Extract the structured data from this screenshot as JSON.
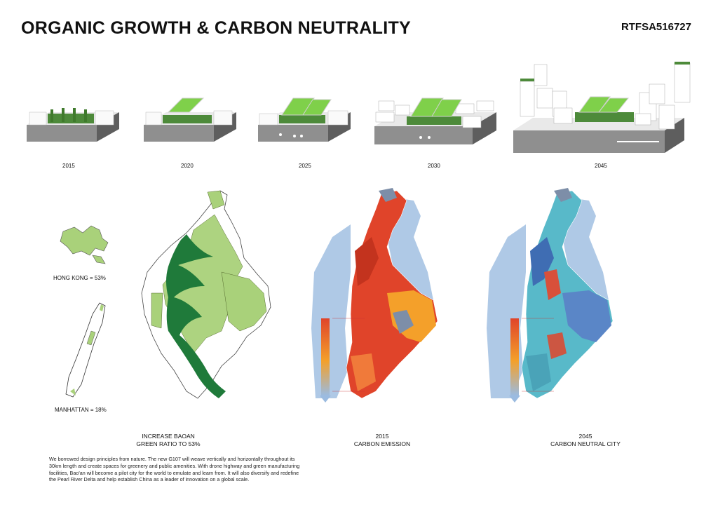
{
  "header": {
    "title": "ORGANIC GROWTH & CARBON NEUTRALITY",
    "code": "RTFSA516727"
  },
  "timeline": {
    "stages": [
      {
        "year": "2015"
      },
      {
        "year": "2020"
      },
      {
        "year": "2025"
      },
      {
        "year": "2030"
      },
      {
        "year": "2045"
      }
    ]
  },
  "comparison": {
    "hong_kong": "HONG KONG = 53%",
    "manhattan": "MANHATTAN = 18%"
  },
  "captions": {
    "green": "INCREASE BAOAN\nGREEN RATIO TO 53%",
    "emission_2015": "2015\nCARBON EMISSION",
    "neutral_2045": "2045\nCARBON NEUTRAL CITY"
  },
  "description": "We borrowed design principles from nature. The new G107 will weave vertically and horizontally throughout its 30km length and create spaces for greenery and public amenities. With drone highway and green manufacturing facilities, Bao'an will become a pilot city for the world to emulate and learn from. It will also diversify and redefine the Pearl River Delta and help establish China as a leader of innovation on a global scale.",
  "colors": {
    "forest_green": "#1f7a3a",
    "light_green": "#a9d17a",
    "emission_red": "#e0442a",
    "emission_orange": "#f4a02a",
    "water_blue": "#9bbbe0",
    "neutral_blue": "#5a86c7",
    "neutral_teal": "#58b9c9"
  }
}
